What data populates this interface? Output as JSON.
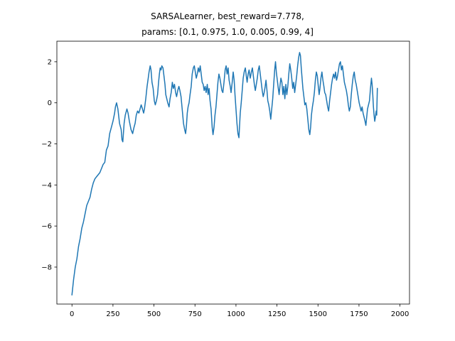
{
  "chart_data": {
    "type": "line",
    "title": [
      "SARSALearner, best_reward=7.778,",
      "params: [0.1, 0.975, 1.0, 0.005, 0.99, 4]"
    ],
    "xlabel": "",
    "ylabel": "",
    "xlim": [
      -92,
      2058
    ],
    "ylim": [
      -9.8,
      3.0
    ],
    "xticks": [
      0,
      250,
      500,
      750,
      1000,
      1250,
      1500,
      1750,
      2000
    ],
    "xtick_labels": [
      "0",
      "250",
      "500",
      "750",
      "1000",
      "1250",
      "1500",
      "1750",
      "2000"
    ],
    "yticks": [
      -8,
      -6,
      -4,
      -2,
      0,
      2
    ],
    "ytick_labels": [
      "−8",
      "−6",
      "−4",
      "−2",
      "0",
      "2"
    ],
    "grid": false,
    "series": [
      {
        "color": "#1f77b4",
        "points": [
          [
            0,
            -9.35
          ],
          [
            10,
            -8.6
          ],
          [
            20,
            -8.0
          ],
          [
            30,
            -7.6
          ],
          [
            40,
            -7.0
          ],
          [
            50,
            -6.6
          ],
          [
            60,
            -6.1
          ],
          [
            70,
            -5.8
          ],
          [
            80,
            -5.4
          ],
          [
            90,
            -5.0
          ],
          [
            100,
            -4.8
          ],
          [
            110,
            -4.6
          ],
          [
            120,
            -4.2
          ],
          [
            130,
            -3.9
          ],
          [
            140,
            -3.7
          ],
          [
            150,
            -3.6
          ],
          [
            160,
            -3.5
          ],
          [
            170,
            -3.4
          ],
          [
            180,
            -3.2
          ],
          [
            190,
            -3.0
          ],
          [
            200,
            -2.9
          ],
          [
            205,
            -2.6
          ],
          [
            210,
            -2.3
          ],
          [
            220,
            -2.1
          ],
          [
            230,
            -1.5
          ],
          [
            240,
            -1.2
          ],
          [
            250,
            -0.9
          ],
          [
            260,
            -0.5
          ],
          [
            265,
            -0.2
          ],
          [
            272,
            0.0
          ],
          [
            280,
            -0.3
          ],
          [
            290,
            -1.0
          ],
          [
            300,
            -1.3
          ],
          [
            305,
            -1.8
          ],
          [
            310,
            -1.9
          ],
          [
            318,
            -1.0
          ],
          [
            325,
            -0.6
          ],
          [
            335,
            -0.3
          ],
          [
            342,
            -0.5
          ],
          [
            350,
            -0.9
          ],
          [
            360,
            -1.3
          ],
          [
            370,
            -1.5
          ],
          [
            378,
            -1.2
          ],
          [
            385,
            -1.0
          ],
          [
            392,
            -0.6
          ],
          [
            400,
            -0.4
          ],
          [
            408,
            -0.5
          ],
          [
            415,
            -0.3
          ],
          [
            422,
            -0.1
          ],
          [
            430,
            -0.3
          ],
          [
            437,
            -0.5
          ],
          [
            442,
            -0.3
          ],
          [
            450,
            0.2
          ],
          [
            458,
            0.8
          ],
          [
            465,
            1.2
          ],
          [
            470,
            1.5
          ],
          [
            477,
            1.8
          ],
          [
            482,
            1.6
          ],
          [
            488,
            1.0
          ],
          [
            495,
            0.7
          ],
          [
            502,
            0.1
          ],
          [
            508,
            -0.1
          ],
          [
            515,
            0.1
          ],
          [
            522,
            0.4
          ],
          [
            528,
            1.0
          ],
          [
            533,
            1.4
          ],
          [
            538,
            1.7
          ],
          [
            543,
            1.6
          ],
          [
            548,
            1.8
          ],
          [
            555,
            1.7
          ],
          [
            561,
            1.3
          ],
          [
            567,
            0.9
          ],
          [
            572,
            0.4
          ],
          [
            578,
            0.2
          ],
          [
            584,
            0.0
          ],
          [
            592,
            -0.2
          ],
          [
            598,
            0.2
          ],
          [
            605,
            0.5
          ],
          [
            612,
            1.0
          ],
          [
            618,
            0.7
          ],
          [
            625,
            0.9
          ],
          [
            632,
            0.5
          ],
          [
            638,
            0.3
          ],
          [
            645,
            0.6
          ],
          [
            652,
            0.8
          ],
          [
            658,
            0.6
          ],
          [
            665,
            0.3
          ],
          [
            672,
            -0.3
          ],
          [
            680,
            -1.0
          ],
          [
            687,
            -1.3
          ],
          [
            693,
            -1.5
          ],
          [
            698,
            -1.1
          ],
          [
            703,
            -0.5
          ],
          [
            708,
            -0.2
          ],
          [
            714,
            0.0
          ],
          [
            720,
            0.4
          ],
          [
            727,
            0.8
          ],
          [
            733,
            1.4
          ],
          [
            740,
            1.7
          ],
          [
            746,
            1.8
          ],
          [
            752,
            1.5
          ],
          [
            758,
            1.2
          ],
          [
            764,
            1.4
          ],
          [
            770,
            1.7
          ],
          [
            776,
            1.5
          ],
          [
            782,
            1.8
          ],
          [
            788,
            1.4
          ],
          [
            794,
            1.0
          ],
          [
            800,
            0.9
          ],
          [
            806,
            0.6
          ],
          [
            812,
            0.8
          ],
          [
            818,
            0.5
          ],
          [
            825,
            0.9
          ],
          [
            830,
            0.4
          ],
          [
            836,
            0.7
          ],
          [
            842,
            0.1
          ],
          [
            848,
            -0.3
          ],
          [
            855,
            -1.2
          ],
          [
            860,
            -1.55
          ],
          [
            866,
            -1.2
          ],
          [
            872,
            -0.6
          ],
          [
            878,
            -0.2
          ],
          [
            884,
            0.4
          ],
          [
            890,
            1.0
          ],
          [
            896,
            1.4
          ],
          [
            902,
            1.2
          ],
          [
            908,
            0.9
          ],
          [
            914,
            0.6
          ],
          [
            920,
            0.5
          ],
          [
            927,
            1.0
          ],
          [
            934,
            1.6
          ],
          [
            940,
            1.8
          ],
          [
            946,
            1.4
          ],
          [
            952,
            1.7
          ],
          [
            958,
            1.1
          ],
          [
            965,
            0.8
          ],
          [
            970,
            0.5
          ],
          [
            977,
            1.0
          ],
          [
            983,
            1.5
          ],
          [
            989,
            1.1
          ],
          [
            994,
            0.4
          ],
          [
            1000,
            -0.3
          ],
          [
            1006,
            -1.0
          ],
          [
            1012,
            -1.5
          ],
          [
            1018,
            -1.7
          ],
          [
            1022,
            -1.1
          ],
          [
            1026,
            -0.5
          ],
          [
            1032,
            0.0
          ],
          [
            1038,
            0.6
          ],
          [
            1044,
            1.2
          ],
          [
            1050,
            1.5
          ],
          [
            1057,
            1.7
          ],
          [
            1063,
            1.3
          ],
          [
            1068,
            1.0
          ],
          [
            1074,
            1.4
          ],
          [
            1080,
            1.6
          ],
          [
            1087,
            1.2
          ],
          [
            1094,
            1.5
          ],
          [
            1100,
            1.7
          ],
          [
            1106,
            1.3
          ],
          [
            1112,
            0.9
          ],
          [
            1118,
            0.6
          ],
          [
            1124,
            0.9
          ],
          [
            1130,
            1.2
          ],
          [
            1136,
            1.6
          ],
          [
            1142,
            1.8
          ],
          [
            1148,
            1.4
          ],
          [
            1154,
            1.0
          ],
          [
            1160,
            0.6
          ],
          [
            1166,
            0.3
          ],
          [
            1172,
            0.5
          ],
          [
            1178,
            0.8
          ],
          [
            1183,
            1.1
          ],
          [
            1189,
            0.6
          ],
          [
            1194,
            0.1
          ],
          [
            1200,
            -0.1
          ],
          [
            1206,
            -0.4
          ],
          [
            1212,
            -0.8
          ],
          [
            1218,
            -0.3
          ],
          [
            1224,
            0.2
          ],
          [
            1230,
            0.9
          ],
          [
            1236,
            1.6
          ],
          [
            1241,
            2.0
          ],
          [
            1246,
            1.5
          ],
          [
            1252,
            1.1
          ],
          [
            1258,
            0.7
          ],
          [
            1263,
            0.4
          ],
          [
            1268,
            0.8
          ],
          [
            1274,
            1.2
          ],
          [
            1280,
            1.0
          ],
          [
            1286,
            0.4
          ],
          [
            1292,
            0.8
          ],
          [
            1298,
            0.2
          ],
          [
            1304,
            0.9
          ],
          [
            1310,
            0.4
          ],
          [
            1316,
            0.8
          ],
          [
            1322,
            1.4
          ],
          [
            1328,
            1.9
          ],
          [
            1334,
            1.6
          ],
          [
            1340,
            1.2
          ],
          [
            1346,
            0.7
          ],
          [
            1352,
            1.0
          ],
          [
            1358,
            0.5
          ],
          [
            1364,
            0.9
          ],
          [
            1370,
            1.3
          ],
          [
            1376,
            1.8
          ],
          [
            1382,
            2.2
          ],
          [
            1388,
            2.45
          ],
          [
            1393,
            2.3
          ],
          [
            1398,
            1.7
          ],
          [
            1403,
            1.2
          ],
          [
            1408,
            0.7
          ],
          [
            1414,
            0.3
          ],
          [
            1420,
            -0.1
          ],
          [
            1426,
            0.0
          ],
          [
            1432,
            -0.3
          ],
          [
            1438,
            -0.8
          ],
          [
            1444,
            -1.3
          ],
          [
            1450,
            -1.55
          ],
          [
            1455,
            -1.2
          ],
          [
            1460,
            -0.6
          ],
          [
            1466,
            -0.2
          ],
          [
            1472,
            0.1
          ],
          [
            1478,
            0.5
          ],
          [
            1484,
            1.1
          ],
          [
            1490,
            1.5
          ],
          [
            1496,
            1.3
          ],
          [
            1502,
            0.8
          ],
          [
            1507,
            0.4
          ],
          [
            1512,
            0.7
          ],
          [
            1518,
            1.2
          ],
          [
            1524,
            1.5
          ],
          [
            1530,
            1.1
          ],
          [
            1536,
            0.8
          ],
          [
            1541,
            0.5
          ],
          [
            1547,
            0.4
          ],
          [
            1553,
            0.1
          ],
          [
            1559,
            -0.2
          ],
          [
            1565,
            -0.4
          ],
          [
            1571,
            0.1
          ],
          [
            1577,
            0.5
          ],
          [
            1583,
            0.9
          ],
          [
            1589,
            1.2
          ],
          [
            1595,
            1.4
          ],
          [
            1601,
            1.2
          ],
          [
            1607,
            1.5
          ],
          [
            1613,
            1.1
          ],
          [
            1619,
            1.3
          ],
          [
            1625,
            1.6
          ],
          [
            1631,
            1.9
          ],
          [
            1637,
            2.0
          ],
          [
            1643,
            1.6
          ],
          [
            1649,
            1.8
          ],
          [
            1655,
            1.4
          ],
          [
            1661,
            1.0
          ],
          [
            1667,
            0.8
          ],
          [
            1673,
            0.6
          ],
          [
            1679,
            0.3
          ],
          [
            1685,
            -0.1
          ],
          [
            1691,
            -0.4
          ],
          [
            1697,
            -0.2
          ],
          [
            1703,
            0.4
          ],
          [
            1709,
            0.9
          ],
          [
            1715,
            1.3
          ],
          [
            1721,
            1.5
          ],
          [
            1727,
            1.1
          ],
          [
            1733,
            0.9
          ],
          [
            1739,
            0.6
          ],
          [
            1745,
            0.3
          ],
          [
            1751,
            0.0
          ],
          [
            1757,
            -0.2
          ],
          [
            1763,
            -0.4
          ],
          [
            1769,
            -0.2
          ],
          [
            1775,
            -0.5
          ],
          [
            1781,
            -0.7
          ],
          [
            1787,
            -0.9
          ],
          [
            1792,
            -1.1
          ],
          [
            1797,
            -0.7
          ],
          [
            1802,
            -0.3
          ],
          [
            1808,
            -0.1
          ],
          [
            1814,
            0.1
          ],
          [
            1820,
            0.7
          ],
          [
            1826,
            1.2
          ],
          [
            1830,
            0.9
          ],
          [
            1834,
            0.4
          ],
          [
            1838,
            -0.2
          ],
          [
            1842,
            -0.6
          ],
          [
            1846,
            -0.9
          ],
          [
            1850,
            -0.7
          ],
          [
            1855,
            -0.4
          ],
          [
            1858,
            -0.6
          ],
          [
            1862,
            0.7
          ]
        ]
      }
    ]
  }
}
